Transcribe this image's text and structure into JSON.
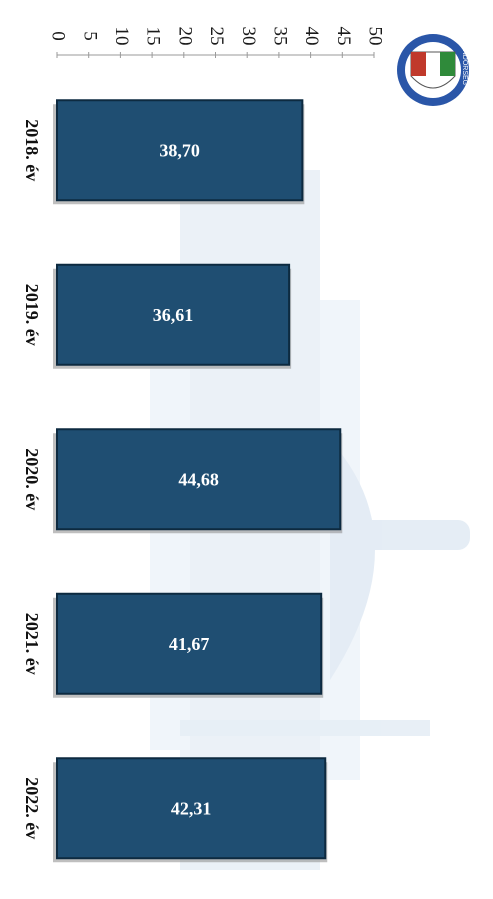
{
  "chart_data": {
    "type": "bar",
    "orientation": "horizontal",
    "categories": [
      "2018. év",
      "2019. év",
      "2020. év",
      "2021. év",
      "2022. év"
    ],
    "values": [
      38.7,
      36.61,
      44.68,
      41.67,
      42.31
    ],
    "value_labels": [
      "38,70",
      "36,61",
      "44,68",
      "41,67",
      "42,31"
    ],
    "ticks": [
      "0",
      "5",
      "10",
      "15",
      "20",
      "25",
      "30",
      "35",
      "40",
      "45",
      "50"
    ],
    "xlim": [
      0,
      50
    ],
    "grid": false,
    "legend": "none",
    "title": "",
    "xlabel": "",
    "ylabel": ""
  },
  "colors": {
    "bar": "#1f4e72",
    "bar_edge": "#0d2a40",
    "shadow": "#8a8a8a",
    "watermark": "#c9d8e8",
    "logo_green": "#2f8a3a",
    "logo_red": "#c0392b",
    "logo_blue": "#2a56a8"
  },
  "logo": {
    "icon": "police-emblem-icon",
    "text": "RENDŐRSÉG"
  }
}
